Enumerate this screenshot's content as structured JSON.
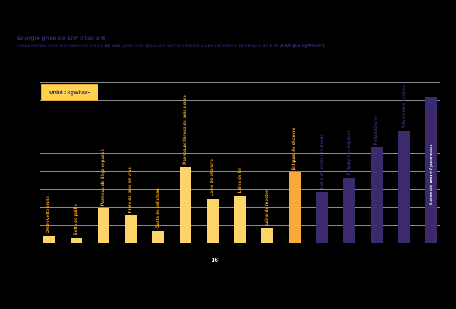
{
  "slide": {
    "title": "Énergie grise de 1m² d'isolant :",
    "subtitle_parts": [
      {
        "text": "calcul réalisé avec une durée de vie de ",
        "bold": false
      },
      {
        "text": "50 ans",
        "bold": true
      },
      {
        "text": ", pour une épaisseur correspondant à une résistance thermique de ",
        "bold": false
      },
      {
        "text": "5 m².K/W (En kgWh/UF)",
        "bold": true
      }
    ],
    "page_number": "16"
  },
  "unit_box": {
    "label": "Unité : kgWh/UF"
  },
  "chart_data": {
    "type": "bar",
    "title": "Énergie grise de 1m² d'isolant",
    "subtitle": "calcul réalisé avec une durée de vie de 50 ans, pour une épaisseur correspondant à une résistance thermique de 5 m².K/W (En kgWh/UF)",
    "unit": "kgWh/UF",
    "xlabel": "",
    "ylabel": "",
    "ylim": [
      0,
      45
    ],
    "gridline_step": 5,
    "grid": true,
    "legend": false,
    "categories": [
      "Chènevotte brute",
      "Botte de paille",
      "Panneau de liège expansé",
      "Fibre de bois en vrac",
      "Ouate de cellulose",
      "Panneaux fibreux de bois dense",
      "Laine de chanvre",
      "Laine de lin",
      "Laine de mouton",
      "Briques de chanvre",
      "Laine de roche / rouleaux",
      "Polystyrène expansé",
      "Polyuréthane",
      "Polystyrène extrudé",
      "Laine de verre / panneaux"
    ],
    "values": [
      2,
      1.5,
      10,
      8,
      3.5,
      21.5,
      12.5,
      13.5,
      4.5,
      20,
      14.5,
      18.5,
      27,
      31.5,
      41
    ],
    "bar_colors": [
      "#FCD468",
      "#FCD468",
      "#FCD468",
      "#FCD468",
      "#FCD468",
      "#FCD468",
      "#FCD468",
      "#FCD468",
      "#FCD468",
      "#F9A83C",
      "#3C2A6E",
      "#3C2A6E",
      "#3C2A6E",
      "#3C2A6E",
      "#3C2A6E"
    ],
    "label_colors": [
      "#F2A51C",
      "#F2A51C",
      "#F2A51C",
      "#F2A51C",
      "#F2A51C",
      "#F2A51C",
      "#F2A51C",
      "#F2A51C",
      "#F2A51C",
      "#F9A83C",
      "#3C2A6E",
      "#3C2A6E",
      "#3C2A6E",
      "#3C2A6E",
      "#FFFFFF"
    ],
    "label_inside_index": 14
  },
  "colors": {
    "background": "#000000",
    "title_text": "#3A2770",
    "gridline": "#8A8A8A",
    "bar_yellow": "#FCD468",
    "bar_orange": "#F9A83C",
    "bar_purple": "#3C2A6E",
    "label_gold": "#F2A51C",
    "label_white": "#FFFFFF",
    "unit_box_bg": "#FFD14D",
    "unit_box_border": "#E8A33D"
  }
}
